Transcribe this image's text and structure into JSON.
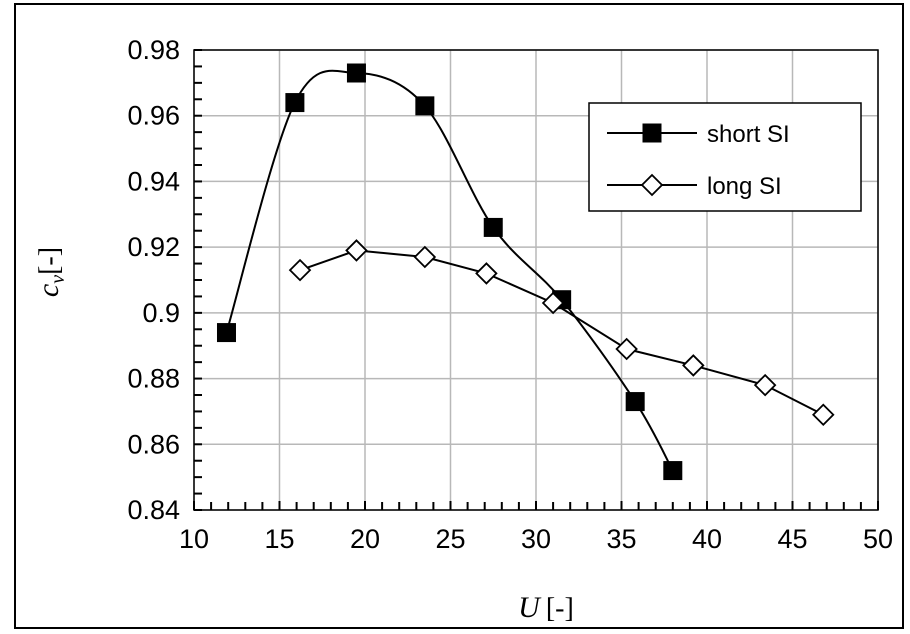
{
  "chart_data": {
    "type": "line",
    "xlabel": "U",
    "xlabel_unit": "[-]",
    "ylabel": "c",
    "ylabel_sub": "v",
    "ylabel_unit": "[-]",
    "xlim": [
      10,
      50
    ],
    "ylim": [
      0.84,
      0.98
    ],
    "xticks": [
      10,
      15,
      20,
      25,
      30,
      35,
      40,
      45,
      50
    ],
    "yticks": [
      0.84,
      0.86,
      0.88,
      0.9,
      0.92,
      0.94,
      0.96,
      0.98
    ],
    "ytick_labels": [
      "0.84",
      "0.86",
      "0.88",
      "0.9",
      "0.92",
      "0.94",
      "0.96",
      "0.98"
    ],
    "grid": true,
    "legend_position": "top-right",
    "series": [
      {
        "name": "short SI",
        "marker": "square-filled",
        "color": "#000000",
        "smooth": true,
        "x": [
          11.9,
          15.9,
          19.5,
          23.5,
          27.5,
          31.5,
          35.8,
          38.0
        ],
        "y": [
          0.894,
          0.964,
          0.973,
          0.963,
          0.926,
          0.904,
          0.873,
          0.852
        ]
      },
      {
        "name": "long SI",
        "marker": "diamond-open",
        "color": "#000000",
        "smooth": false,
        "x": [
          16.2,
          19.5,
          23.5,
          27.1,
          31.0,
          35.3,
          39.2,
          43.4,
          46.8
        ],
        "y": [
          0.913,
          0.919,
          0.917,
          0.912,
          0.903,
          0.889,
          0.884,
          0.878,
          0.869
        ]
      }
    ]
  }
}
